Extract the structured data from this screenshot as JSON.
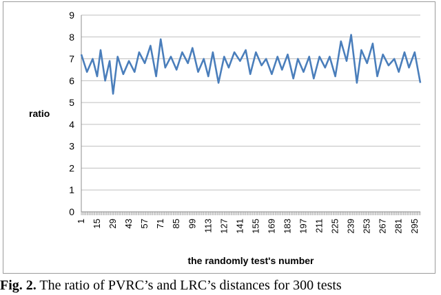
{
  "caption": {
    "label": "Fig. 2.",
    "text": " The ratio of PVRC’s and LRC’s distances for 300 tests"
  },
  "chart_data": {
    "type": "line",
    "title": "",
    "xlabel": "the randomly test's number",
    "ylabel": "ratio",
    "ylim": [
      0,
      9
    ],
    "yticks": [
      0,
      1,
      2,
      3,
      4,
      5,
      6,
      7,
      8,
      9
    ],
    "xlim": [
      1,
      300
    ],
    "xticks": [
      1,
      15,
      29,
      43,
      57,
      71,
      85,
      99,
      113,
      127,
      141,
      155,
      169,
      183,
      197,
      211,
      225,
      239,
      253,
      267,
      281,
      295
    ],
    "grid": "horizontal",
    "legend": "none",
    "series": [
      {
        "color": "#4a7ebb",
        "x": [
          1,
          6,
          11,
          15,
          18,
          22,
          26,
          29,
          33,
          38,
          43,
          48,
          52,
          57,
          62,
          67,
          71,
          75,
          80,
          85,
          90,
          95,
          99,
          104,
          109,
          113,
          117,
          122,
          127,
          131,
          136,
          141,
          146,
          150,
          155,
          160,
          164,
          169,
          174,
          178,
          183,
          188,
          192,
          197,
          202,
          206,
          211,
          216,
          220,
          225,
          230,
          235,
          239,
          244,
          248,
          253,
          258,
          262,
          267,
          272,
          277,
          281,
          286,
          290,
          295,
          300
        ],
        "values": [
          7.2,
          6.4,
          7.0,
          6.2,
          7.4,
          6.0,
          6.9,
          5.4,
          7.1,
          6.3,
          6.9,
          6.4,
          7.3,
          6.8,
          7.6,
          6.2,
          7.9,
          6.6,
          7.1,
          6.5,
          7.3,
          6.8,
          7.5,
          6.4,
          7.0,
          6.2,
          7.3,
          5.9,
          7.1,
          6.6,
          7.3,
          6.9,
          7.4,
          6.3,
          7.3,
          6.7,
          7.0,
          6.3,
          7.1,
          6.5,
          7.2,
          6.1,
          7.0,
          6.4,
          7.1,
          6.1,
          7.1,
          6.6,
          7.1,
          6.2,
          7.8,
          6.9,
          8.1,
          5.9,
          7.4,
          6.8,
          7.7,
          6.2,
          7.2,
          6.7,
          7.0,
          6.4,
          7.3,
          6.6,
          7.3,
          5.9
        ]
      }
    ]
  }
}
